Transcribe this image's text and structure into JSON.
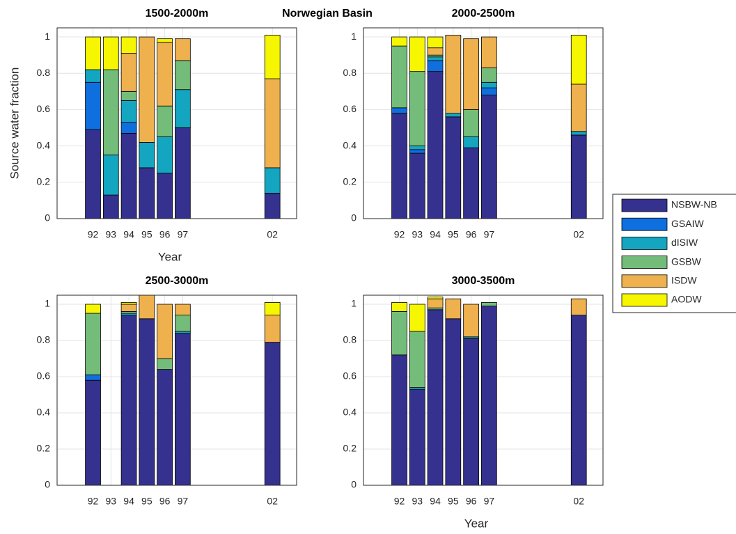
{
  "title": "Norwegian Basin",
  "legend": {
    "entries": [
      {
        "name": "NSBW-NB",
        "color": "#35318f"
      },
      {
        "name": "GSAIW",
        "color": "#0f6fdf"
      },
      {
        "name": "dISIW",
        "color": "#14a5c1"
      },
      {
        "name": "GSBW",
        "color": "#74bc79"
      },
      {
        "name": "ISDW",
        "color": "#eeb14d"
      },
      {
        "name": "AODW",
        "color": "#f6f600"
      }
    ]
  },
  "chart_data": [
    {
      "type": "stacked_bar",
      "title": "1500-2000m",
      "ylabel": "Source water fraction",
      "xlabel": "Year",
      "x": [
        1992,
        1993,
        1994,
        1995,
        1996,
        1997,
        2002
      ],
      "series": [
        {
          "values": [
            0.49,
            0.13,
            0.47,
            0.28,
            0.25,
            0.5,
            0.14
          ]
        },
        {
          "values": [
            0.26,
            0,
            0.06,
            0,
            0,
            0,
            0
          ]
        },
        {
          "values": [
            0.07,
            0.22,
            0.12,
            0.14,
            0.2,
            0.21,
            0.14
          ]
        },
        {
          "values": [
            0,
            0.47,
            0.05,
            0,
            0.17,
            0.16,
            0
          ]
        },
        {
          "values": [
            0,
            0,
            0.21,
            0.58,
            0.35,
            0.12,
            0.49
          ]
        },
        {
          "values": [
            0.18,
            0.18,
            0.09,
            0,
            0.02,
            0,
            0.24
          ]
        }
      ],
      "xlim": [
        1990,
        2003.35
      ],
      "xticks": [
        {
          "value": 1992,
          "label": "92"
        },
        {
          "value": 1993,
          "label": "93"
        },
        {
          "value": 1994,
          "label": "94"
        },
        {
          "value": 1995,
          "label": "95"
        },
        {
          "value": 1996,
          "label": "96"
        },
        {
          "value": 1997,
          "label": "97"
        },
        {
          "value": 2002,
          "label": "02"
        }
      ],
      "ylim": [
        0,
        1.05
      ],
      "yticks": [
        0,
        0.2,
        0.4,
        0.6,
        0.8,
        1
      ],
      "grid": true
    },
    {
      "type": "stacked_bar",
      "title": "2000-2500m",
      "x": [
        1992,
        1993,
        1994,
        1995,
        1996,
        1997,
        2002
      ],
      "series": [
        {
          "values": [
            0.58,
            0.36,
            0.81,
            0.56,
            0.39,
            0.68,
            0.46
          ]
        },
        {
          "values": [
            0.03,
            0.02,
            0.06,
            0,
            0,
            0.04,
            0
          ]
        },
        {
          "values": [
            0,
            0.02,
            0.02,
            0.02,
            0.06,
            0.03,
            0.02
          ]
        },
        {
          "values": [
            0.34,
            0.41,
            0.01,
            0,
            0.15,
            0.08,
            0
          ]
        },
        {
          "values": [
            0,
            0,
            0.04,
            0.43,
            0.39,
            0.17,
            0.26
          ]
        },
        {
          "values": [
            0.05,
            0.19,
            0.06,
            0,
            0,
            0,
            0.27
          ]
        }
      ],
      "xlim": [
        1990,
        2003.35
      ],
      "xticks": [
        {
          "value": 1992,
          "label": "92"
        },
        {
          "value": 1993,
          "label": "93"
        },
        {
          "value": 1994,
          "label": "94"
        },
        {
          "value": 1995,
          "label": "95"
        },
        {
          "value": 1996,
          "label": "96"
        },
        {
          "value": 1997,
          "label": "97"
        },
        {
          "value": 2002,
          "label": "02"
        }
      ],
      "ylim": [
        0,
        1.05
      ],
      "yticks": [
        0,
        0.2,
        0.4,
        0.6,
        0.8,
        1
      ],
      "grid": true
    },
    {
      "type": "stacked_bar",
      "title": "2500-3000m",
      "x": [
        1992,
        1993,
        1994,
        1995,
        1996,
        1997,
        2002
      ],
      "series": [
        {
          "values": [
            0.58,
            0,
            0.94,
            0.92,
            0.64,
            0.84,
            0.79
          ]
        },
        {
          "values": [
            0.03,
            0,
            0,
            0,
            0,
            0,
            0
          ]
        },
        {
          "values": [
            0,
            0,
            0.01,
            0,
            0,
            0.01,
            0
          ]
        },
        {
          "values": [
            0.34,
            0,
            0.01,
            0,
            0.06,
            0.09,
            0
          ]
        },
        {
          "values": [
            0,
            0,
            0.04,
            0.13,
            0.3,
            0.06,
            0.15
          ]
        },
        {
          "values": [
            0.05,
            0,
            0.01,
            0,
            0,
            0,
            0.07
          ]
        }
      ],
      "xlim": [
        1990,
        2003.35
      ],
      "xticks": [
        {
          "value": 1992,
          "label": "92"
        },
        {
          "value": 1993,
          "label": "93"
        },
        {
          "value": 1994,
          "label": "94"
        },
        {
          "value": 1995,
          "label": "95"
        },
        {
          "value": 1996,
          "label": "96"
        },
        {
          "value": 1997,
          "label": "97"
        },
        {
          "value": 2002,
          "label": "02"
        }
      ],
      "ylim": [
        0,
        1.05
      ],
      "yticks": [
        0,
        0.2,
        0.4,
        0.6,
        0.8,
        1
      ],
      "grid": true
    },
    {
      "type": "stacked_bar",
      "title": "3000-3500m",
      "xlabel": "Year",
      "x": [
        1992,
        1993,
        1994,
        1995,
        1996,
        1997,
        2002
      ],
      "series": [
        {
          "values": [
            0.72,
            0.53,
            0.97,
            0.92,
            0.81,
            0.99,
            0.94
          ]
        },
        {
          "values": [
            0,
            0,
            0,
            0,
            0,
            0,
            0
          ]
        },
        {
          "values": [
            0,
            0.01,
            0,
            0,
            0.01,
            0,
            0
          ]
        },
        {
          "values": [
            0.24,
            0.31,
            0.01,
            0,
            0,
            0.02,
            0
          ]
        },
        {
          "values": [
            0,
            0,
            0.05,
            0.11,
            0.18,
            0,
            0.09
          ]
        },
        {
          "values": [
            0.05,
            0.15,
            0.01,
            0,
            0,
            0,
            0
          ]
        }
      ],
      "xlim": [
        1990,
        2003.35
      ],
      "xticks": [
        {
          "value": 1992,
          "label": "92"
        },
        {
          "value": 1993,
          "label": "93"
        },
        {
          "value": 1994,
          "label": "94"
        },
        {
          "value": 1995,
          "label": "95"
        },
        {
          "value": 1996,
          "label": "96"
        },
        {
          "value": 1997,
          "label": "97"
        },
        {
          "value": 2002,
          "label": "02"
        }
      ],
      "ylim": [
        0,
        1.05
      ],
      "yticks": [
        0,
        0.2,
        0.4,
        0.6,
        0.8,
        1
      ],
      "grid": true
    }
  ]
}
